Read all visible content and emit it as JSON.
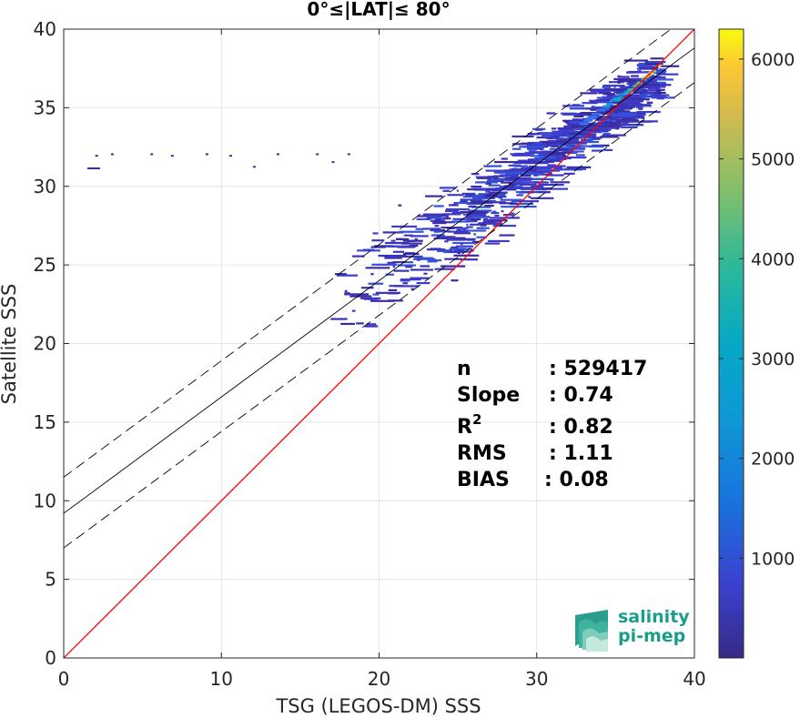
{
  "chart_data": {
    "type": "heatmap",
    "title": "0°≤|LAT|≤ 80°",
    "xlabel": "TSG (LEGOS-DM) SSS",
    "ylabel": "Satellite SSS",
    "xlim": [
      0,
      40
    ],
    "ylim": [
      0,
      40
    ],
    "xticks": [
      "0",
      "10",
      "20",
      "30",
      "40"
    ],
    "yticks": [
      "0",
      "5",
      "10",
      "15",
      "20",
      "25",
      "30",
      "35",
      "40"
    ],
    "grid": true,
    "colorbar": {
      "colormap": "parula",
      "range": [
        0,
        6300
      ],
      "ticks": [
        "1000",
        "2000",
        "3000",
        "4000",
        "5000",
        "6000"
      ]
    },
    "density_core": {
      "x": [
        18,
        22,
        26,
        30,
        33,
        35,
        36.5,
        37.5
      ],
      "y": [
        26,
        27.5,
        29.5,
        31.5,
        33.5,
        35,
        36.3,
        37.2
      ],
      "note_count_peak": 6300
    },
    "lines": [
      {
        "name": "identity",
        "color": "#ff0000",
        "points": [
          [
            0,
            0
          ],
          [
            40,
            40
          ]
        ]
      },
      {
        "name": "regression",
        "color": "#000000",
        "points": [
          [
            0,
            9.2
          ],
          [
            40,
            38.8
          ]
        ]
      },
      {
        "name": "regression_plus_2sd",
        "color": "#000000",
        "dashed": true,
        "points": [
          [
            0,
            11.5
          ],
          [
            40,
            41.1
          ]
        ]
      },
      {
        "name": "regression_minus_2sd",
        "color": "#000000",
        "dashed": true,
        "points": [
          [
            0,
            7.0
          ],
          [
            40,
            36.6
          ]
        ]
      }
    ],
    "stats": [
      {
        "label": "n",
        "value": ": 529417"
      },
      {
        "label": "Slope",
        "value": ": 0.74"
      },
      {
        "label": "R2",
        "value": ": 0.82"
      },
      {
        "label": "RMS",
        "value": ": 1.11"
      },
      {
        "label": "BIAS",
        "value": ": 0.08"
      }
    ]
  },
  "logo": {
    "line1": "salinity",
    "line2": "pi-mep",
    "color": "#1a9e8c"
  }
}
